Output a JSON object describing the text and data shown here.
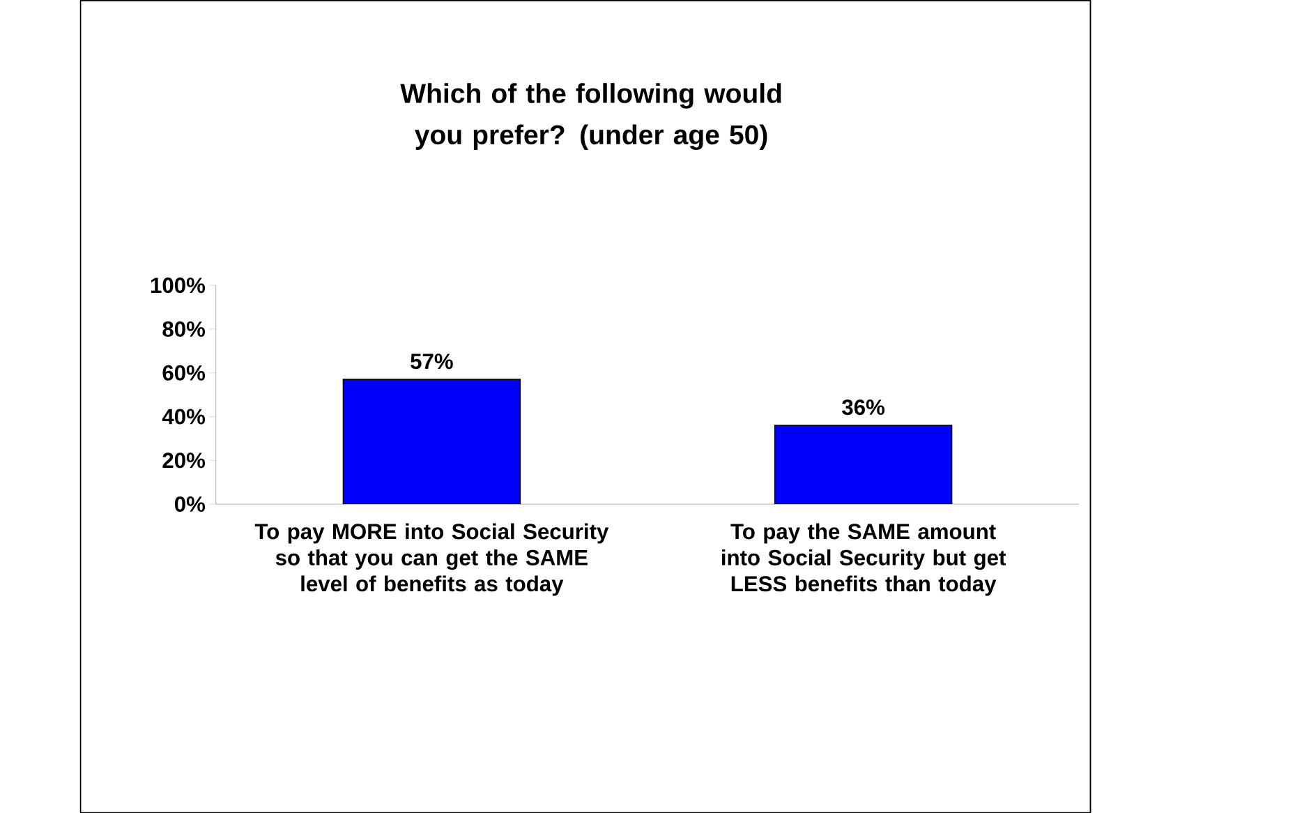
{
  "chart_data": {
    "type": "bar",
    "title": "Which of the following would you prefer? (under age 50)",
    "categories": [
      "To pay MORE into Social Security so that you can get the SAME level of benefits as today",
      "To pay the SAME amount into Social Security but get LESS benefits than today"
    ],
    "values": [
      57,
      36
    ],
    "color": "#0000ff",
    "value_labels": [
      "57%",
      "36%"
    ],
    "ylim": [
      0,
      100
    ],
    "yticks": [
      {
        "value": 0,
        "label": "0%"
      },
      {
        "value": 20,
        "label": "20%"
      },
      {
        "value": 40,
        "label": "40%"
      },
      {
        "value": 60,
        "label": "60%"
      },
      {
        "value": 80,
        "label": "80%"
      },
      {
        "value": 100,
        "label": "100%"
      }
    ]
  }
}
